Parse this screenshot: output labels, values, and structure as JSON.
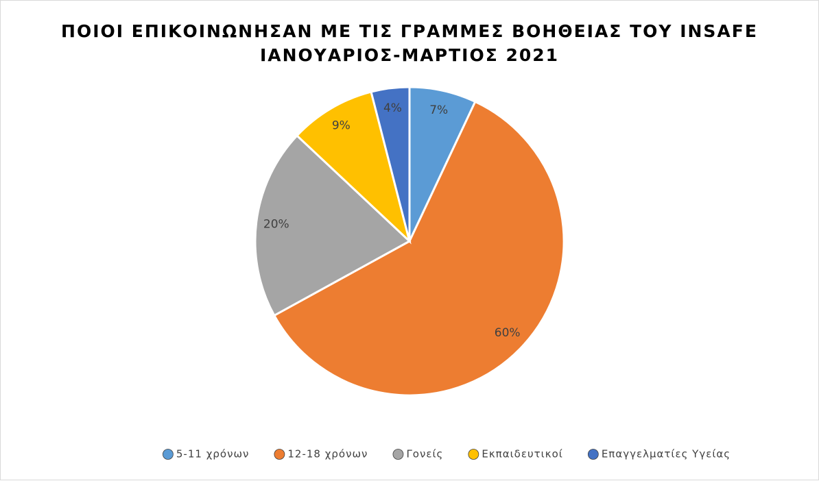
{
  "chart_data": {
    "type": "pie",
    "title": [
      "ΠΟΙΟΙ ΕΠΙΚΟΙΝΩΝΗΣΑΝ ΜΕ ΤΙΣ ΓΡΑΜΜΕΣ ΒΟΗΘΕΙΑΣ ΤΟΥ INSAFE",
      "ΙΑΝΟΥΑΡΙΟΣ-ΜΑΡΤΙΟΣ 2021"
    ],
    "categories": [
      "5-11 χρόνων",
      "12-18 χρόνων",
      "Γονείς",
      "Εκπαιδευτικοί",
      "Επαγγελματίες Υγείας"
    ],
    "values": [
      7,
      60,
      20,
      9,
      4
    ],
    "value_labels": [
      "7%",
      "60%",
      "20%",
      "9%",
      "4%"
    ],
    "colors": [
      "#5b9bd5",
      "#ed7d31",
      "#a5a5a5",
      "#ffc000",
      "#4472c4"
    ],
    "legend": "bottom"
  }
}
